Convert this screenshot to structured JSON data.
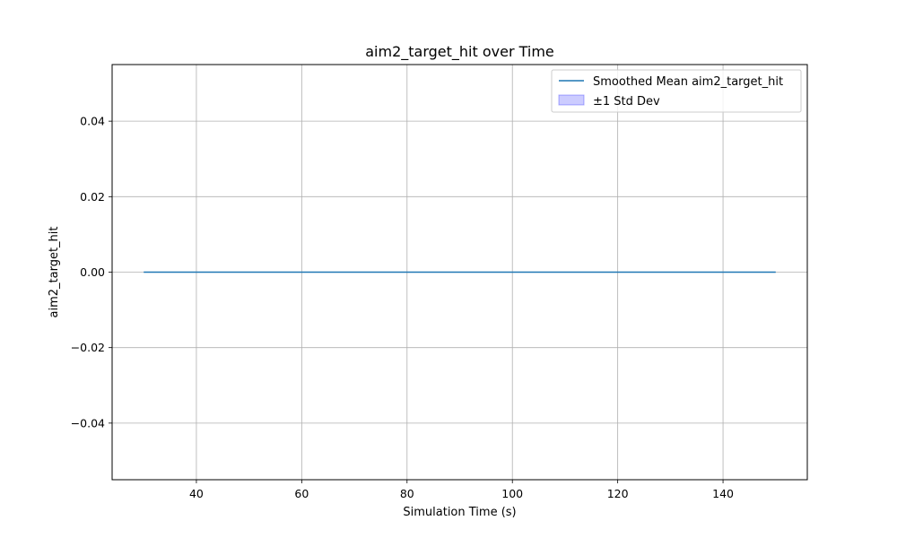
{
  "chart_data": {
    "type": "line",
    "title": "aim2_target_hit over Time",
    "xlabel": "Simulation Time (s)",
    "ylabel": "aim2_target_hit",
    "xlim": [
      24,
      156
    ],
    "ylim": [
      -0.055,
      0.055
    ],
    "xticks": [
      40,
      60,
      80,
      100,
      120,
      140
    ],
    "yticks": [
      -0.04,
      -0.02,
      0.0,
      0.02,
      0.04
    ],
    "ytick_labels": [
      "−0.04",
      "−0.02",
      "0.00",
      "0.02",
      "0.04"
    ],
    "grid": true,
    "legend_position": "top-right",
    "series": [
      {
        "name": "Smoothed Mean aim2_target_hit",
        "kind": "line",
        "color": "#1f77b4",
        "x": [
          30,
          150
        ],
        "y": [
          0,
          0
        ]
      },
      {
        "name": "±1 Std Dev",
        "kind": "band",
        "color": "#0000ff",
        "x": [
          30,
          150
        ],
        "lower": [
          0,
          0
        ],
        "upper": [
          0,
          0
        ]
      }
    ]
  }
}
